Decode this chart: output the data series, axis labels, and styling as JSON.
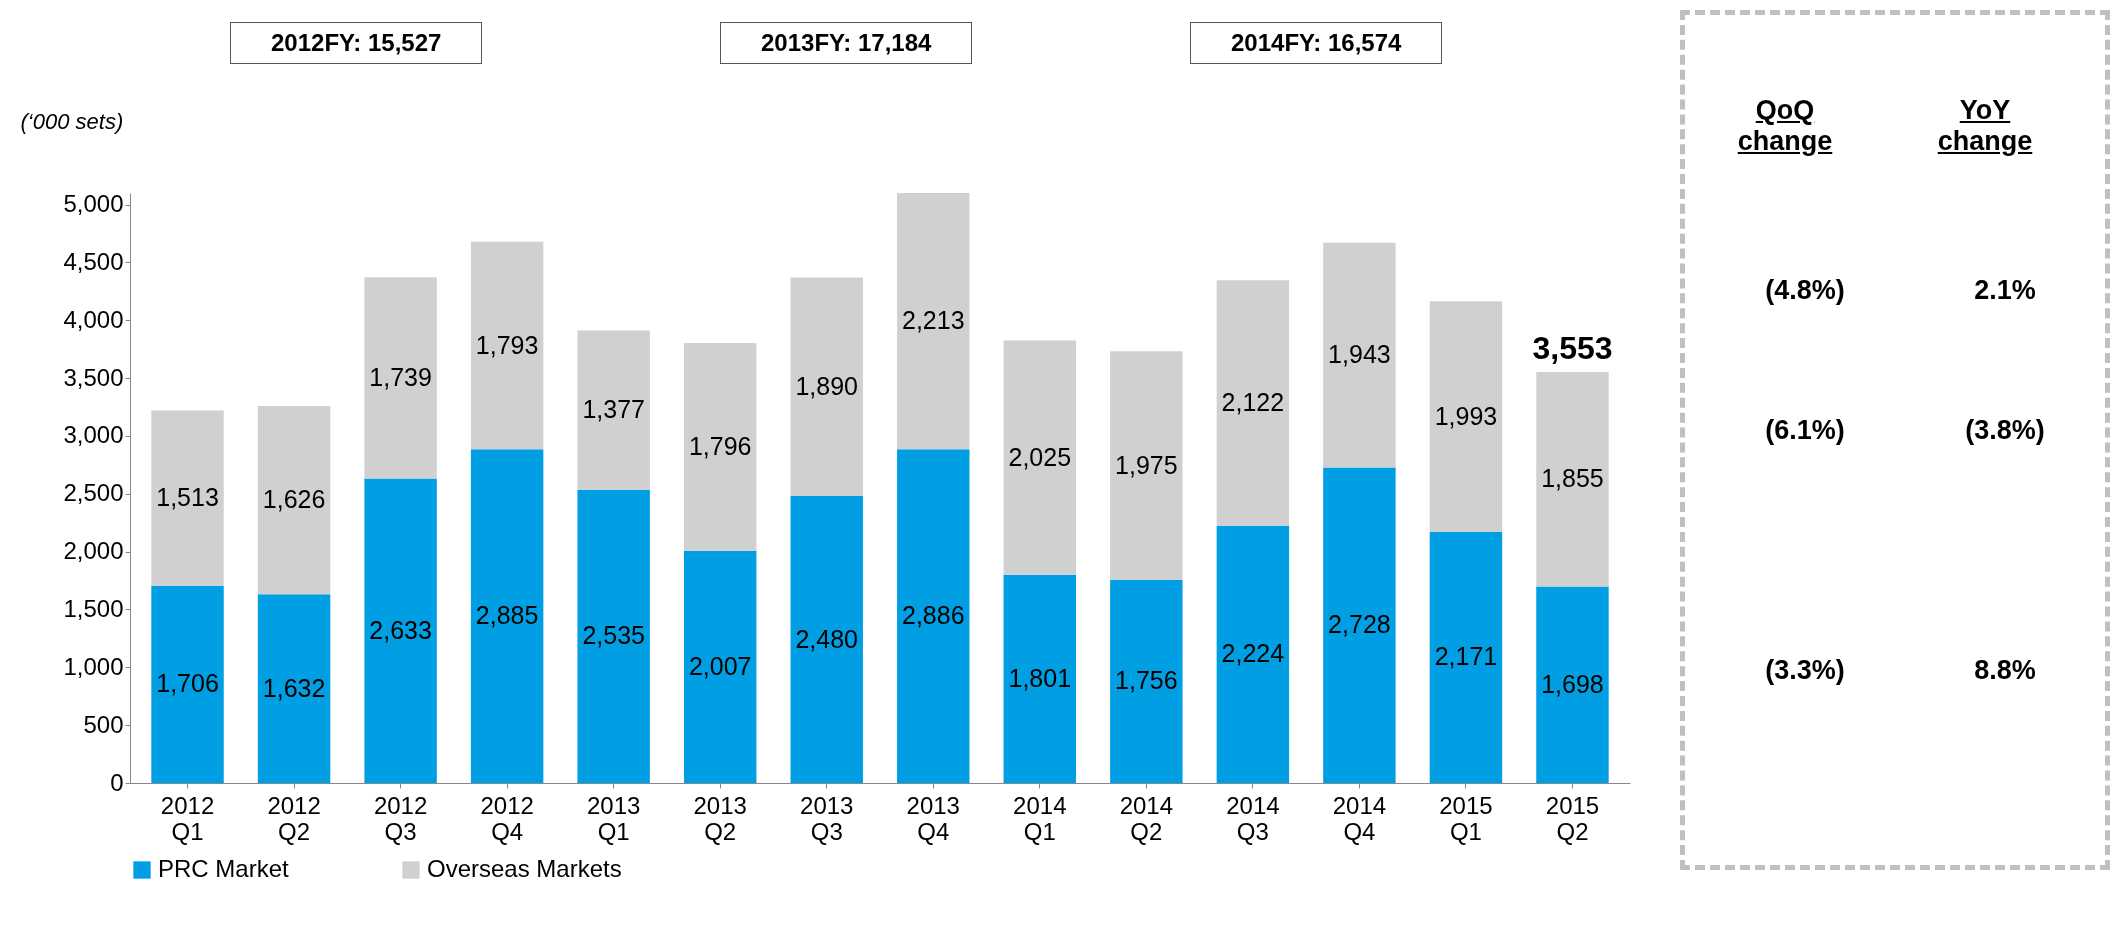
{
  "chart_data": {
    "type": "bar",
    "stacked": true,
    "ylabel": "(‘000 sets)",
    "categories": [
      "2012 Q1",
      "2012 Q2",
      "2012 Q3",
      "2012 Q4",
      "2013 Q1",
      "2013 Q2",
      "2013 Q3",
      "2013 Q4",
      "2014 Q1",
      "2014 Q2",
      "2014 Q3",
      "2014 Q4",
      "2015 Q1",
      "2015 Q2"
    ],
    "series": [
      {
        "name": "PRC Market",
        "color": "#009fe3",
        "values": [
          1706,
          1632,
          2633,
          2885,
          2535,
          2007,
          2480,
          2886,
          1801,
          1756,
          2224,
          2728,
          2171,
          1698
        ],
        "value_labels": [
          "1,706",
          "1,632",
          "2,633",
          "2,885",
          "2,535",
          "2,007",
          "2,480",
          "2,886",
          "1,801",
          "1,756",
          "2,224",
          "2,728",
          "2,171",
          "1,698"
        ]
      },
      {
        "name": "Overseas Markets",
        "color": "#d0d0d0",
        "values": [
          1513,
          1626,
          1739,
          1793,
          1377,
          1796,
          1890,
          2213,
          2025,
          1975,
          2122,
          1943,
          1993,
          1855
        ],
        "value_labels": [
          "1,513",
          "1,626",
          "1,739",
          "1,793",
          "1,377",
          "1,796",
          "1,890",
          "2,213",
          "2,025",
          "1,975",
          "2,122",
          "1,943",
          "1,993",
          "1,855"
        ]
      }
    ],
    "totals": [
      null,
      null,
      null,
      null,
      null,
      null,
      null,
      null,
      null,
      null,
      null,
      null,
      null,
      "3,553"
    ],
    "ylim": [
      0,
      5100
    ],
    "yticks": [
      0,
      500,
      {
        "value": 1000,
        "label": "1,000"
      },
      {
        "value": 1500,
        "label": "1,500"
      },
      {
        "value": 2000,
        "label": "2,000"
      },
      {
        "value": 2500,
        "label": "2,500"
      },
      {
        "value": 3000,
        "label": "3,000"
      },
      {
        "value": 3500,
        "label": "3,500"
      },
      {
        "value": 4000,
        "label": "4,000"
      },
      {
        "value": 4500,
        "label": "4,500"
      },
      {
        "value": 5000,
        "label": "5,000"
      }
    ],
    "grid": false,
    "legend": "bottom",
    "annotations": [
      "2012FY: 15,527",
      "2013FY: 17,184",
      "2014FY: 16,574",
      "QoQ change",
      "YoY change",
      "(4.8%)",
      "2.1%",
      "(6.1%)",
      "(3.8%)",
      "(3.3%)",
      "8.8%"
    ]
  }
}
